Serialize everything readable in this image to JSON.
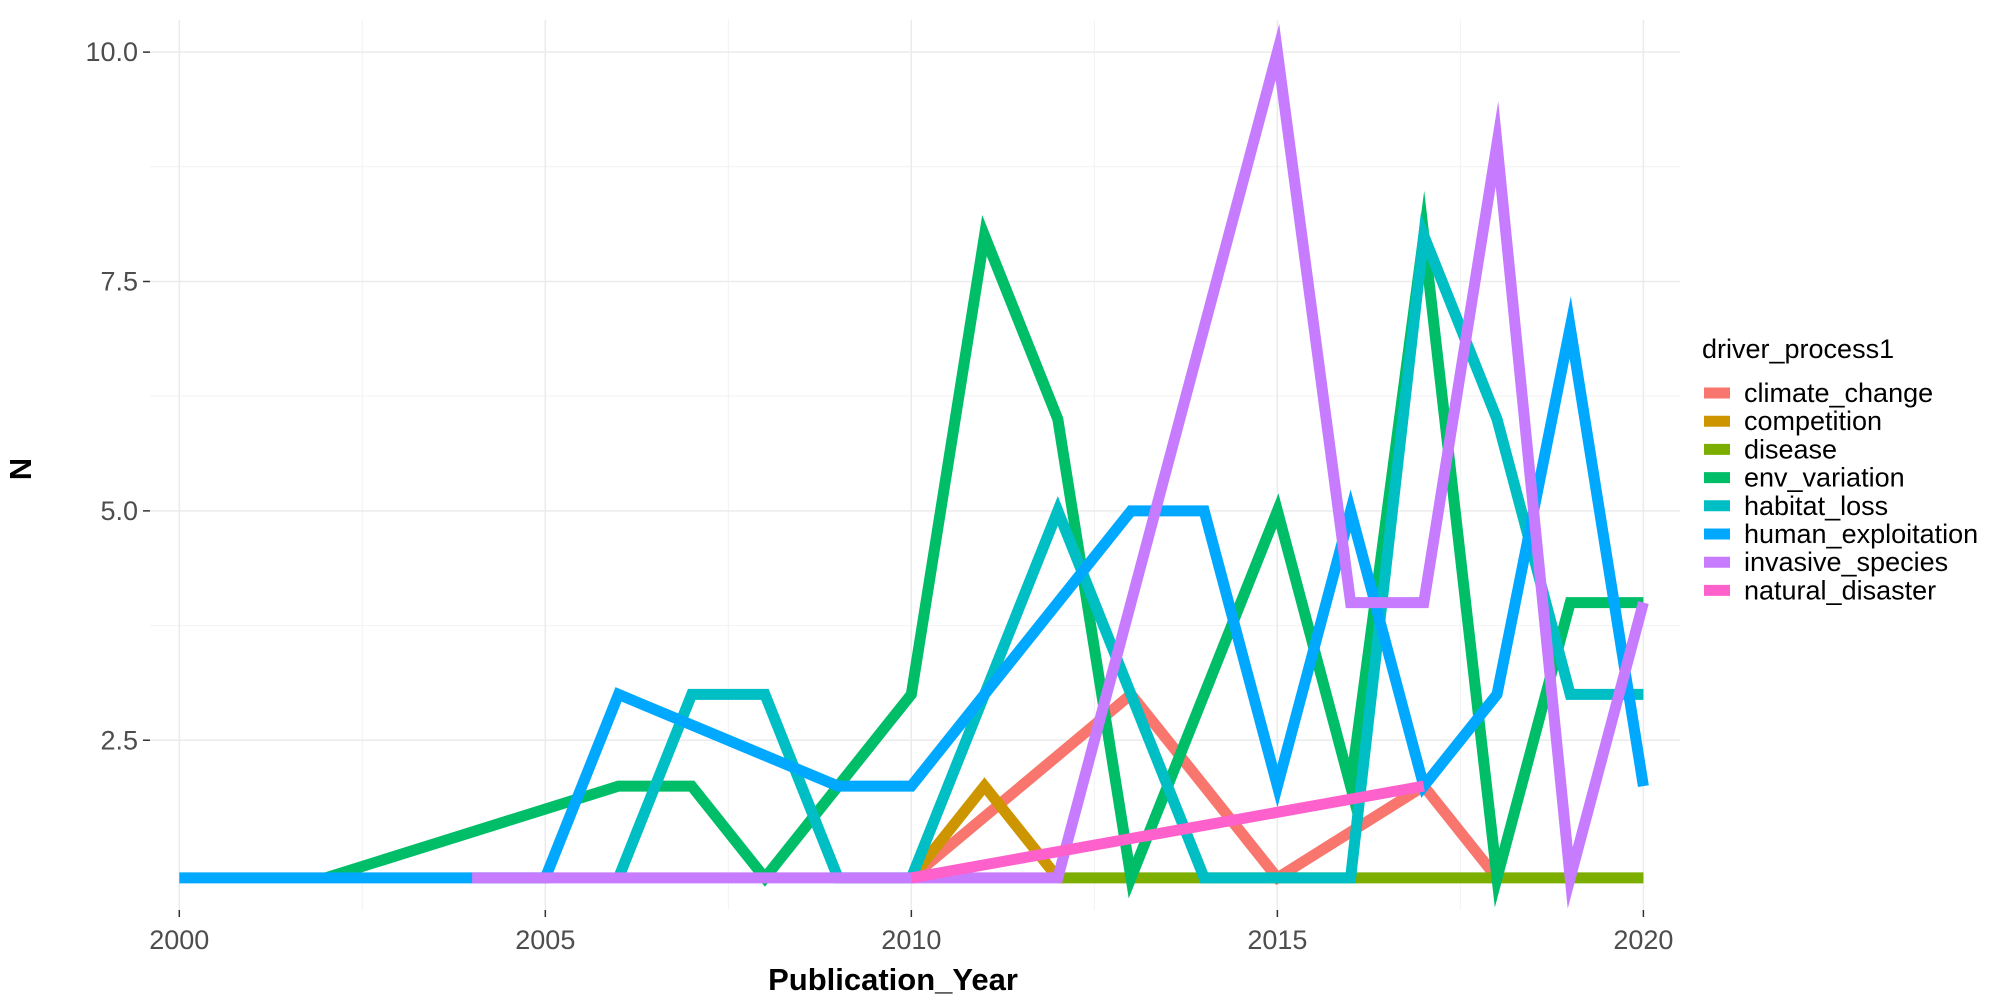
{
  "chart_data": {
    "type": "line",
    "xlabel": "Publication_Year",
    "ylabel": "N",
    "xlim": [
      1999.6,
      2020.5
    ],
    "ylim": [
      0.65,
      10.35
    ],
    "x_ticks": [
      2000,
      2005,
      2010,
      2015,
      2020
    ],
    "x_tick_labels": [
      "2000",
      "2005",
      "2010",
      "2015",
      "2020"
    ],
    "y_ticks": [
      2.5,
      5.0,
      7.5,
      10.0
    ],
    "y_tick_labels": [
      "2.5",
      "5.0",
      "7.5",
      "10.0"
    ],
    "grid": true,
    "legend_title": "driver_process1",
    "legend_position": "right",
    "series": [
      {
        "name": "climate_change",
        "color": "#F8766D",
        "points": [
          [
            2010,
            1
          ],
          [
            2013,
            3
          ],
          [
            2015,
            1
          ],
          [
            2017,
            2
          ],
          [
            2018,
            1
          ]
        ]
      },
      {
        "name": "competition",
        "color": "#CD9600",
        "points": [
          [
            2010,
            1
          ],
          [
            2011,
            2
          ],
          [
            2012,
            1
          ]
        ]
      },
      {
        "name": "disease",
        "color": "#7CAE00",
        "points": [
          [
            2012,
            1
          ],
          [
            2020,
            1
          ]
        ]
      },
      {
        "name": "env_variation",
        "color": "#00BE67",
        "points": [
          [
            2002,
            1
          ],
          [
            2006,
            2
          ],
          [
            2007,
            2
          ],
          [
            2008,
            1
          ],
          [
            2010,
            3
          ],
          [
            2011,
            8
          ],
          [
            2012,
            6
          ],
          [
            2013,
            1
          ],
          [
            2015,
            5
          ],
          [
            2016,
            2
          ],
          [
            2017,
            8
          ],
          [
            2018,
            1
          ],
          [
            2019,
            4
          ],
          [
            2020,
            4
          ]
        ]
      },
      {
        "name": "habitat_loss",
        "color": "#00BFC4",
        "points": [
          [
            2006,
            1
          ],
          [
            2007,
            3
          ],
          [
            2008,
            3
          ],
          [
            2009,
            1
          ],
          [
            2010,
            1
          ],
          [
            2012,
            5
          ],
          [
            2014,
            1
          ],
          [
            2016,
            1
          ],
          [
            2017,
            8
          ],
          [
            2018,
            6
          ],
          [
            2019,
            3
          ],
          [
            2020,
            3
          ]
        ]
      },
      {
        "name": "human_exploitation",
        "color": "#00A9FF",
        "points": [
          [
            2000,
            1
          ],
          [
            2004,
            1
          ],
          [
            2005,
            1
          ],
          [
            2006,
            3
          ],
          [
            2009,
            2
          ],
          [
            2010,
            2
          ],
          [
            2013,
            5
          ],
          [
            2014,
            5
          ],
          [
            2015,
            2
          ],
          [
            2016,
            5
          ],
          [
            2017,
            2
          ],
          [
            2018,
            3
          ],
          [
            2019,
            7
          ],
          [
            2020,
            2
          ]
        ]
      },
      {
        "name": "invasive_species",
        "color": "#C77CFF",
        "points": [
          [
            2004,
            1
          ],
          [
            2012,
            1
          ],
          [
            2015,
            10
          ],
          [
            2016,
            4
          ],
          [
            2017,
            4
          ],
          [
            2018,
            9
          ],
          [
            2019,
            1
          ],
          [
            2020,
            4
          ]
        ]
      },
      {
        "name": "natural_disaster",
        "color": "#FF61CC",
        "points": [
          [
            2010,
            1
          ],
          [
            2017,
            2
          ]
        ]
      }
    ]
  }
}
